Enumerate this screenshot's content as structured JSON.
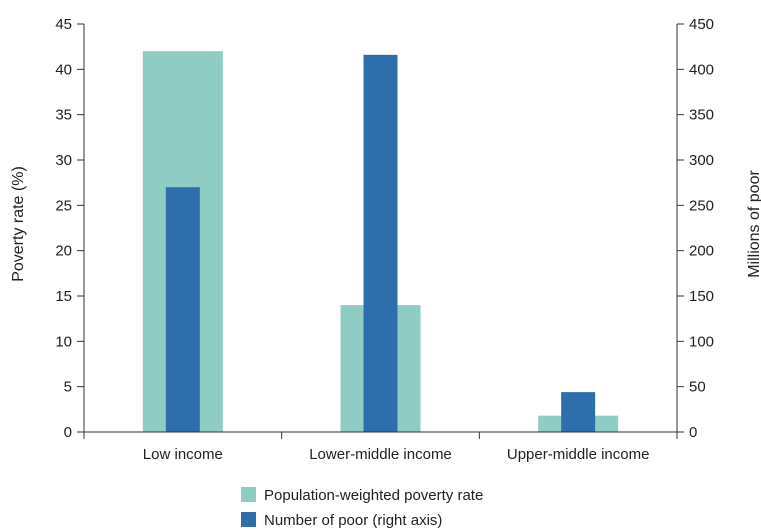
{
  "chart_data": {
    "type": "bar",
    "title": "",
    "categories": [
      "Low income",
      "Lower-middle income",
      "Upper-middle income"
    ],
    "series": [
      {
        "name": "Population-weighted poverty rate",
        "axis": "left",
        "color": "#8fcdc4",
        "values": [
          42,
          14,
          1.8
        ]
      },
      {
        "name": "Number of poor (right axis)",
        "axis": "right",
        "color": "#2f6ead",
        "values": [
          270,
          416,
          44
        ]
      }
    ],
    "ylabel": "Poverty  rate (%)",
    "ylabel_right": "Millions of poor",
    "ylim": [
      0,
      45
    ],
    "ylim_right": [
      0,
      450
    ],
    "yticks": [
      "0",
      "5",
      "10",
      "15",
      "20",
      "25",
      "30",
      "35",
      "40",
      "45"
    ],
    "yticks_right": [
      "0",
      "50",
      "100",
      "150",
      "200",
      "250",
      "300",
      "350",
      "400",
      "450"
    ],
    "grid": false,
    "legend_position": "bottom"
  }
}
